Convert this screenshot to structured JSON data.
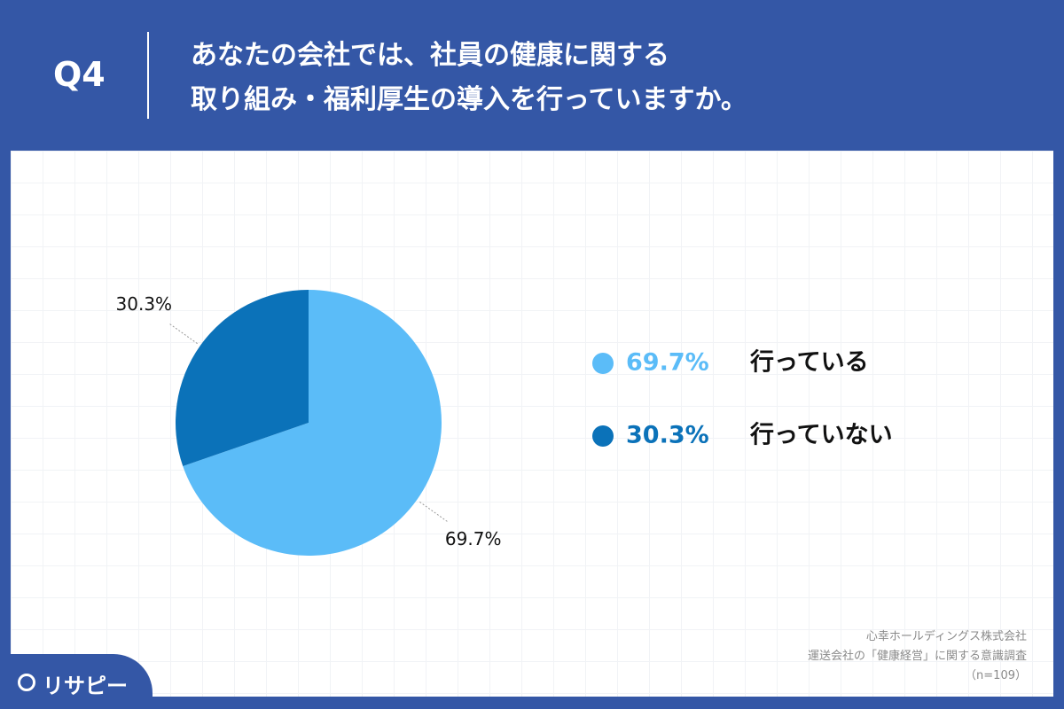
{
  "header": {
    "label": "Q4",
    "title_lines": [
      "あなたの会社では、社員の健康に関する",
      "取り組み・福利厚生の導入を行っていますか。"
    ]
  },
  "chart_data": {
    "type": "pie",
    "categories": [
      "行っている",
      "行っていない"
    ],
    "values": [
      69.7,
      30.3
    ],
    "value_labels": [
      "69.7%",
      "30.3%"
    ],
    "colors": [
      "#5bbcf8",
      "#0b72b9"
    ]
  },
  "footer": {
    "source_lines": [
      "心幸ホールディングス株式会社",
      "運送会社の「健康経営」に関する意識調査",
      "（n=109）"
    ],
    "logo": "リサピー"
  }
}
